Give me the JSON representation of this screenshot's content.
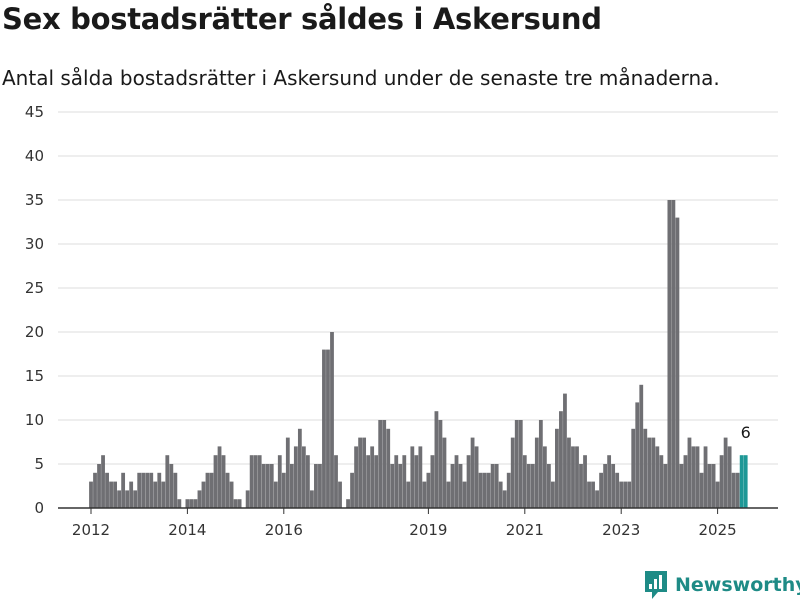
{
  "title": "Sex bostadsrätter såldes i Askersund",
  "subtitle": "Antal sålda bostadsrätter i Askersund under de senaste tre månaderna.",
  "brand": {
    "name": "Newsworthy",
    "icon": "newsworthy-logo-icon",
    "color": "#1e8b86"
  },
  "colors": {
    "bar": "#6f6f73",
    "highlight": "#1e9896",
    "grid": "#dcdcdc",
    "axis": "#333333"
  },
  "chart_data": {
    "type": "bar",
    "xlabel": "",
    "ylabel": "",
    "ylim": [
      0,
      45
    ],
    "yticks": [
      "0",
      "5",
      "10",
      "15",
      "20",
      "25",
      "30",
      "35",
      "40",
      "45"
    ],
    "xticks": [
      "2012",
      "2014",
      "2016",
      "2019",
      "2021",
      "2023",
      "2025"
    ],
    "xtick_positions": [
      2012.0,
      2014.0,
      2016.0,
      2019.0,
      2021.0,
      2023.0,
      2025.0
    ],
    "x_start": 2012.0,
    "x_step": 0.08333,
    "grid": true,
    "values": [
      3,
      4,
      5,
      6,
      4,
      3,
      3,
      2,
      4,
      2,
      3,
      2,
      4,
      4,
      4,
      4,
      3,
      4,
      3,
      6,
      5,
      4,
      1,
      0,
      1,
      1,
      1,
      2,
      3,
      4,
      4,
      6,
      7,
      6,
      4,
      3,
      1,
      1,
      0,
      2,
      6,
      6,
      6,
      5,
      5,
      5,
      3,
      6,
      4,
      8,
      5,
      7,
      9,
      7,
      6,
      2,
      5,
      5,
      18,
      18,
      20,
      6,
      3,
      0,
      1,
      4,
      7,
      8,
      8,
      6,
      7,
      6,
      10,
      10,
      9,
      5,
      6,
      5,
      6,
      3,
      7,
      6,
      7,
      3,
      4,
      6,
      11,
      10,
      8,
      3,
      5,
      6,
      5,
      3,
      6,
      8,
      7,
      4,
      4,
      4,
      5,
      5,
      3,
      2,
      4,
      8,
      10,
      10,
      6,
      5,
      5,
      8,
      10,
      7,
      5,
      3,
      9,
      11,
      13,
      8,
      7,
      7,
      5,
      6,
      3,
      3,
      2,
      4,
      5,
      6,
      5,
      4,
      3,
      3,
      3,
      9,
      12,
      14,
      9,
      8,
      8,
      7,
      6,
      5,
      35,
      35,
      33,
      5,
      6,
      8,
      7,
      7,
      4,
      7,
      5,
      5,
      3,
      6,
      8,
      7,
      4,
      4,
      6,
      6
    ],
    "highlight_count": 2,
    "last_label": "6"
  }
}
